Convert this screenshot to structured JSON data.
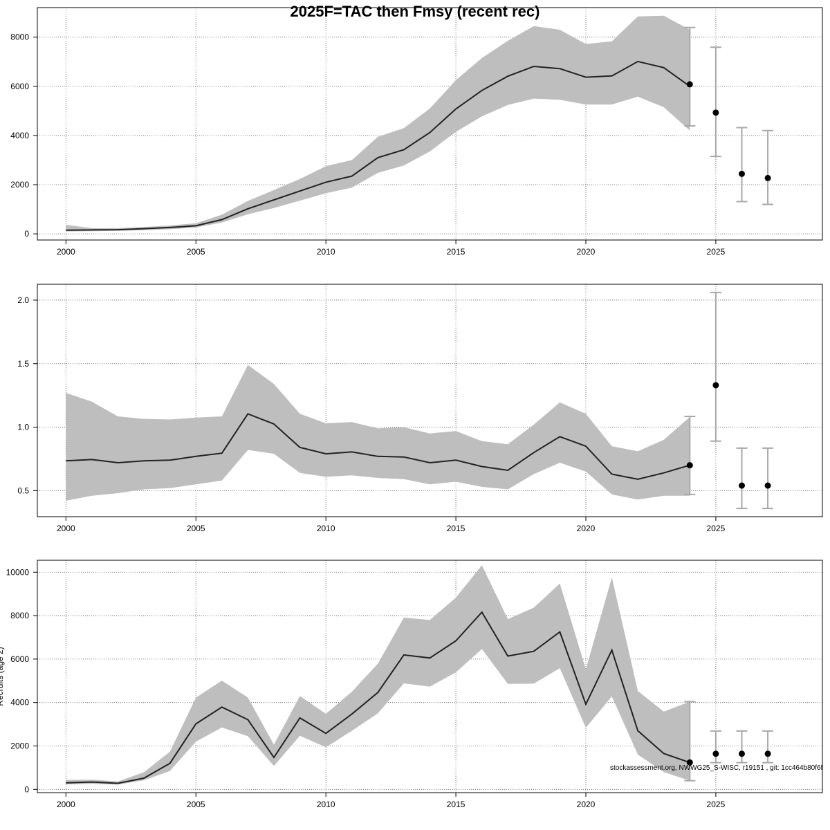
{
  "title": "2025F=TAC then Fmsy (recent rec)",
  "footnote": "stockassessment.org, NWWG25_S-WISC, r19151 , git: 1cc464b80f6f",
  "colors": {
    "band": "#bebebe",
    "line": "#222222",
    "point": "#000000",
    "errorbar": "#a8a8a8",
    "grid": "#555555",
    "frame": "#000000"
  },
  "chart_data": [
    {
      "type": "line",
      "name": "ssb-panel",
      "years": [
        2000,
        2001,
        2002,
        2003,
        2004,
        2005,
        2006,
        2007,
        2008,
        2009,
        2010,
        2011,
        2012,
        2013,
        2014,
        2015,
        2016,
        2017,
        2018,
        2019,
        2020,
        2021,
        2022,
        2023,
        2024
      ],
      "estimate": [
        150,
        160,
        170,
        210,
        260,
        330,
        580,
        1020,
        1380,
        1740,
        2100,
        2350,
        3100,
        3420,
        4120,
        5080,
        5830,
        6410,
        6810,
        6720,
        6370,
        6420,
        7010,
        6760,
        6000
      ],
      "lower": [
        100,
        110,
        120,
        150,
        190,
        260,
        460,
        800,
        1050,
        1350,
        1650,
        1880,
        2480,
        2780,
        3350,
        4150,
        4780,
        5240,
        5500,
        5450,
        5260,
        5260,
        5580,
        5150,
        4200
      ],
      "upper": [
        370,
        230,
        230,
        280,
        340,
        430,
        780,
        1340,
        1780,
        2230,
        2750,
        3000,
        3950,
        4300,
        5100,
        6250,
        7150,
        7850,
        8450,
        8300,
        7720,
        7830,
        8840,
        8870,
        8300
      ],
      "forecast": {
        "years": [
          2024,
          2025,
          2026,
          2027
        ],
        "median": [
          6080,
          4930,
          2440,
          2270
        ],
        "lower": [
          4390,
          3150,
          1310,
          1200
        ],
        "upper": [
          8390,
          7590,
          4320,
          4200
        ]
      },
      "xlim": [
        1998.9,
        2029.1
      ],
      "ylim": [
        -250,
        9200
      ],
      "xticks": [
        "2000",
        "2005",
        "2010",
        "2015",
        "2020",
        "2025"
      ],
      "yticks": [
        "0",
        "2000",
        "4000",
        "6000",
        "8000"
      ],
      "grid": true
    },
    {
      "type": "line",
      "name": "f-panel",
      "years": [
        2000,
        2001,
        2002,
        2003,
        2004,
        2005,
        2006,
        2007,
        2008,
        2009,
        2010,
        2011,
        2012,
        2013,
        2014,
        2015,
        2016,
        2017,
        2018,
        2019,
        2020,
        2021,
        2022,
        2023,
        2024
      ],
      "estimate": [
        0.735,
        0.745,
        0.72,
        0.735,
        0.74,
        0.77,
        0.795,
        1.105,
        1.025,
        0.84,
        0.79,
        0.805,
        0.77,
        0.765,
        0.72,
        0.74,
        0.69,
        0.66,
        0.8,
        0.925,
        0.85,
        0.63,
        0.59,
        0.64,
        0.7
      ],
      "lower": [
        0.42,
        0.46,
        0.48,
        0.51,
        0.52,
        0.55,
        0.58,
        0.82,
        0.79,
        0.64,
        0.61,
        0.62,
        0.6,
        0.59,
        0.55,
        0.57,
        0.53,
        0.51,
        0.63,
        0.72,
        0.65,
        0.47,
        0.43,
        0.46,
        0.46
      ],
      "upper": [
        1.27,
        1.2,
        1.085,
        1.065,
        1.06,
        1.075,
        1.085,
        1.49,
        1.34,
        1.105,
        1.03,
        1.04,
        0.99,
        1.0,
        0.95,
        0.97,
        0.89,
        0.865,
        1.02,
        1.195,
        1.105,
        0.85,
        0.81,
        0.9,
        1.08
      ],
      "forecast": {
        "years": [
          2024,
          2025,
          2026,
          2027
        ],
        "median": [
          0.7,
          1.33,
          0.54,
          0.54
        ],
        "lower": [
          0.47,
          0.89,
          0.36,
          0.36
        ],
        "upper": [
          1.085,
          2.06,
          0.835,
          0.835
        ]
      },
      "xlim": [
        1998.9,
        2029.1
      ],
      "ylim": [
        0.295,
        2.125
      ],
      "xticks": [
        "2000",
        "2005",
        "2010",
        "2015",
        "2020",
        "2025"
      ],
      "yticks": [
        "0.5",
        "1.0",
        "1.5",
        "2.0"
      ],
      "grid": true
    },
    {
      "type": "line",
      "name": "recruits-panel",
      "ylabel": "Recruits (age 2)",
      "years": [
        2000,
        2001,
        2002,
        2003,
        2004,
        2005,
        2006,
        2007,
        2008,
        2009,
        2010,
        2011,
        2012,
        2013,
        2014,
        2015,
        2016,
        2017,
        2018,
        2019,
        2020,
        2021,
        2022,
        2023,
        2024
      ],
      "estimate": [
        300,
        340,
        280,
        520,
        1200,
        3020,
        3790,
        3210,
        1470,
        3290,
        2580,
        3470,
        4460,
        6190,
        6050,
        6840,
        8160,
        6140,
        6360,
        7250,
        3920,
        6410,
        2700,
        1650,
        1240
      ],
      "lower": [
        230,
        250,
        220,
        420,
        850,
        2200,
        2850,
        2450,
        1080,
        2470,
        1940,
        2700,
        3500,
        4880,
        4730,
        5390,
        6460,
        4860,
        4870,
        5580,
        2840,
        4280,
        1600,
        800,
        400
      ],
      "upper": [
        430,
        450,
        370,
        790,
        1740,
        4230,
        5010,
        4230,
        2060,
        4300,
        3480,
        4500,
        5790,
        7910,
        7800,
        8830,
        10320,
        7840,
        8370,
        9480,
        5530,
        9760,
        4530,
        3580,
        4040
      ],
      "forecast": {
        "years": [
          2024,
          2025,
          2026,
          2027
        ],
        "median": [
          1240,
          1640,
          1640,
          1640
        ],
        "lower": [
          400,
          1230,
          1230,
          1230
        ],
        "upper": [
          4040,
          2690,
          2690,
          2690
        ]
      },
      "xlim": [
        1998.9,
        2029.1
      ],
      "ylim": [
        -150,
        10550
      ],
      "xticks": [
        "2000",
        "2005",
        "2010",
        "2015",
        "2020",
        "2025"
      ],
      "yticks": [
        "0",
        "2000",
        "4000",
        "6000",
        "8000",
        "10000"
      ],
      "grid": true
    }
  ]
}
